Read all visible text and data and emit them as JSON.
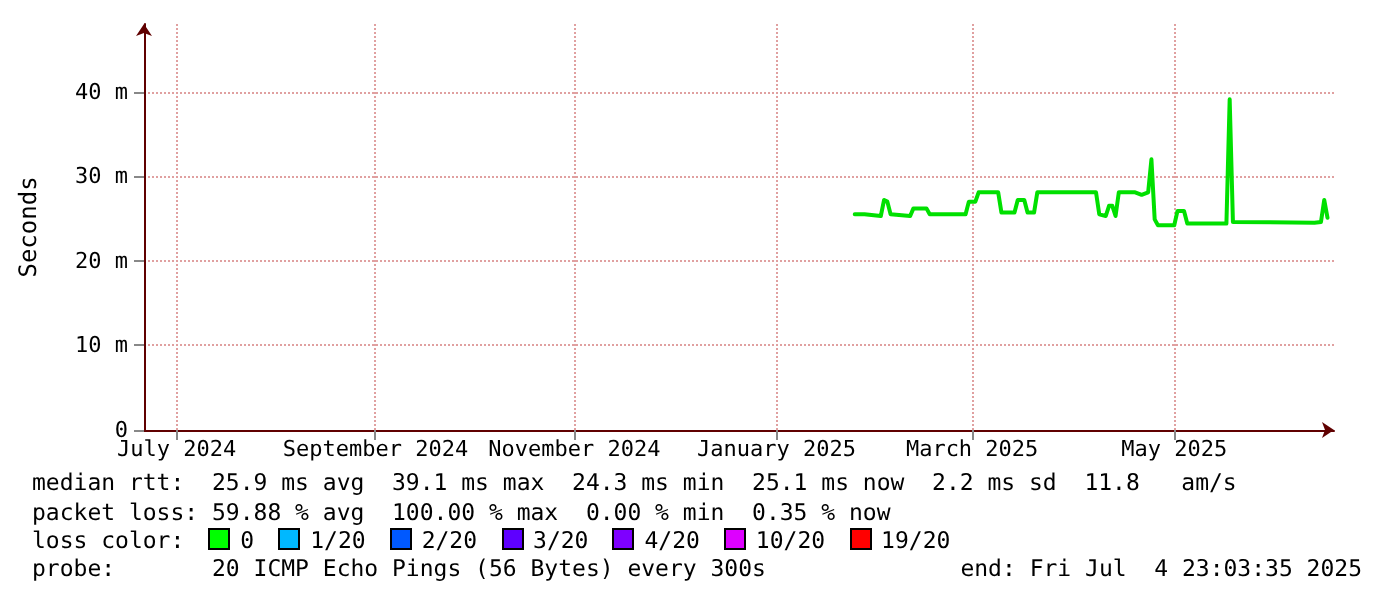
{
  "chart_data": {
    "type": "line",
    "ylabel": "Seconds",
    "xlim": [
      "2024-07-04",
      "2025-07-04"
    ],
    "xticks": [
      {
        "value": "2024-07-14",
        "label": "July 2024"
      },
      {
        "value": "2024-09-13",
        "label": "September 2024"
      },
      {
        "value": "2024-11-13",
        "label": "November 2024"
      },
      {
        "value": "2025-01-14",
        "label": "January 2025"
      },
      {
        "value": "2025-03-15",
        "label": "March 2025"
      },
      {
        "value": "2025-05-16",
        "label": "May 2025"
      }
    ],
    "ylim": [
      0,
      48
    ],
    "yticks": [
      {
        "value": 0,
        "label": "0"
      },
      {
        "value": 10,
        "label": "10 m"
      },
      {
        "value": 20,
        "label": "20 m"
      },
      {
        "value": 30,
        "label": "30 m"
      },
      {
        "value": 40,
        "label": "40 m"
      }
    ],
    "grid": true,
    "marker": "none",
    "line_style": "solid",
    "series": [
      {
        "color": "#00e000",
        "x": [
          "2025-02-07",
          "2025-02-10",
          "2025-02-15",
          "2025-02-16",
          "2025-02-17",
          "2025-02-18",
          "2025-02-24",
          "2025-02-25",
          "2025-03-01",
          "2025-03-02",
          "2025-03-13",
          "2025-03-14",
          "2025-03-16",
          "2025-03-17",
          "2025-03-23",
          "2025-03-24",
          "2025-03-28",
          "2025-03-29",
          "2025-03-31",
          "2025-04-01",
          "2025-04-03",
          "2025-04-04",
          "2025-04-22",
          "2025-04-23",
          "2025-04-25",
          "2025-04-26",
          "2025-04-27",
          "2025-04-28",
          "2025-04-29",
          "2025-05-04",
          "2025-05-06",
          "2025-05-08",
          "2025-05-09",
          "2025-05-10",
          "2025-05-11",
          "2025-05-16",
          "2025-05-17",
          "2025-05-19",
          "2025-05-20",
          "2025-06-01",
          "2025-06-02",
          "2025-06-03",
          "2025-06-28",
          "2025-06-30",
          "2025-07-01",
          "2025-07-02"
        ],
        "values": [
          25.5,
          25.5,
          25.3,
          27.2,
          27.0,
          25.5,
          25.3,
          26.2,
          26.2,
          25.5,
          25.5,
          27.0,
          27.0,
          28.1,
          28.1,
          25.7,
          25.7,
          27.2,
          27.2,
          25.7,
          25.7,
          28.1,
          28.1,
          25.5,
          25.3,
          26.5,
          26.5,
          25.3,
          28.1,
          28.1,
          27.8,
          28.1,
          32.0,
          24.9,
          24.2,
          24.2,
          25.9,
          25.9,
          24.4,
          24.4,
          39.1,
          24.6,
          24.5,
          24.6,
          27.2,
          25.1
        ]
      }
    ],
    "annotations": [
      "median rtt:  25.9 ms avg  39.1 ms max  24.3 ms min  25.1 ms now  2.2 ms sd  11.8   am/s",
      "packet loss: 59.88 % avg  100.00 % max  0.00 % min  0.35 % now",
      "loss color:",
      "0",
      "1/20",
      "2/20",
      "3/20",
      "4/20",
      "10/20",
      "19/20",
      "probe:       20 ICMP Echo Pings (56 Bytes) every 300s",
      "end: Fri Jul  4 23:03:35 2025"
    ]
  }
}
